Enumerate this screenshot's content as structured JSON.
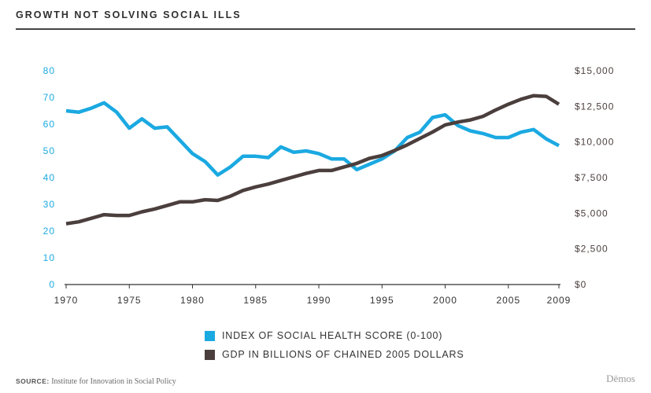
{
  "header": {
    "title": "GROWTH NOT SOLVING SOCIAL ILLS"
  },
  "source": {
    "label": "SOURCE:",
    "text": "Institute for Innovation in Social Policy"
  },
  "brand": "Dēmos",
  "colors": {
    "social_health": "#1ba9e1",
    "gdp": "#4b3f3d",
    "axis_text_left": "#1ba9e1",
    "axis_text_right": "#4b3f3d"
  },
  "chart_data": {
    "type": "line",
    "title": "GROWTH NOT SOLVING SOCIAL ILLS",
    "x": [
      1970,
      1971,
      1972,
      1973,
      1974,
      1975,
      1976,
      1977,
      1978,
      1979,
      1980,
      1981,
      1982,
      1983,
      1984,
      1985,
      1986,
      1987,
      1988,
      1989,
      1990,
      1991,
      1992,
      1993,
      1994,
      1995,
      1996,
      1997,
      1998,
      1999,
      2000,
      2001,
      2002,
      2003,
      2004,
      2005,
      2006,
      2007,
      2008,
      2009
    ],
    "xticks": [
      1970,
      1975,
      1980,
      1985,
      1990,
      1995,
      2000,
      2005,
      2009
    ],
    "y_left": {
      "lim": [
        0,
        80
      ],
      "ticks": [
        "0",
        "10",
        "20",
        "30",
        "40",
        "50",
        "60",
        "70",
        "80"
      ]
    },
    "y_right": {
      "lim": [
        0,
        15000
      ],
      "ticks": [
        "$0",
        "$2,500",
        "$5,000",
        "$7,500",
        "$10,000",
        "$12,500",
        "$15,000"
      ]
    },
    "series": [
      {
        "name": "INDEX OF SOCIAL HEALTH SCORE (0-100)",
        "axis": "left",
        "color": "#1ba9e1",
        "values": [
          65,
          64.5,
          66,
          68,
          64.5,
          58.5,
          62,
          58.5,
          59,
          54,
          49,
          46,
          41,
          44,
          48,
          48,
          47.5,
          51.5,
          49.5,
          50,
          49,
          47,
          47,
          43,
          45,
          47,
          50,
          55,
          57,
          62.5,
          63.5,
          59.5,
          57.5,
          56.5,
          55,
          55,
          57,
          58,
          54.5,
          52
        ]
      },
      {
        "name": "GDP IN BILLIONS OF CHAINED 2005 DOLLARS",
        "axis": "right",
        "color": "#4b3f3d",
        "values": [
          4270,
          4400,
          4650,
          4900,
          4850,
          4850,
          5100,
          5300,
          5550,
          5800,
          5800,
          5950,
          5900,
          6200,
          6600,
          6850,
          7050,
          7300,
          7550,
          7800,
          8000,
          8000,
          8250,
          8500,
          8850,
          9050,
          9400,
          9800,
          10250,
          10700,
          11200,
          11400,
          11550,
          11800,
          12250,
          12650,
          13000,
          13250,
          13200,
          12650
        ]
      }
    ],
    "legend": "bottom-center",
    "grid": false
  }
}
